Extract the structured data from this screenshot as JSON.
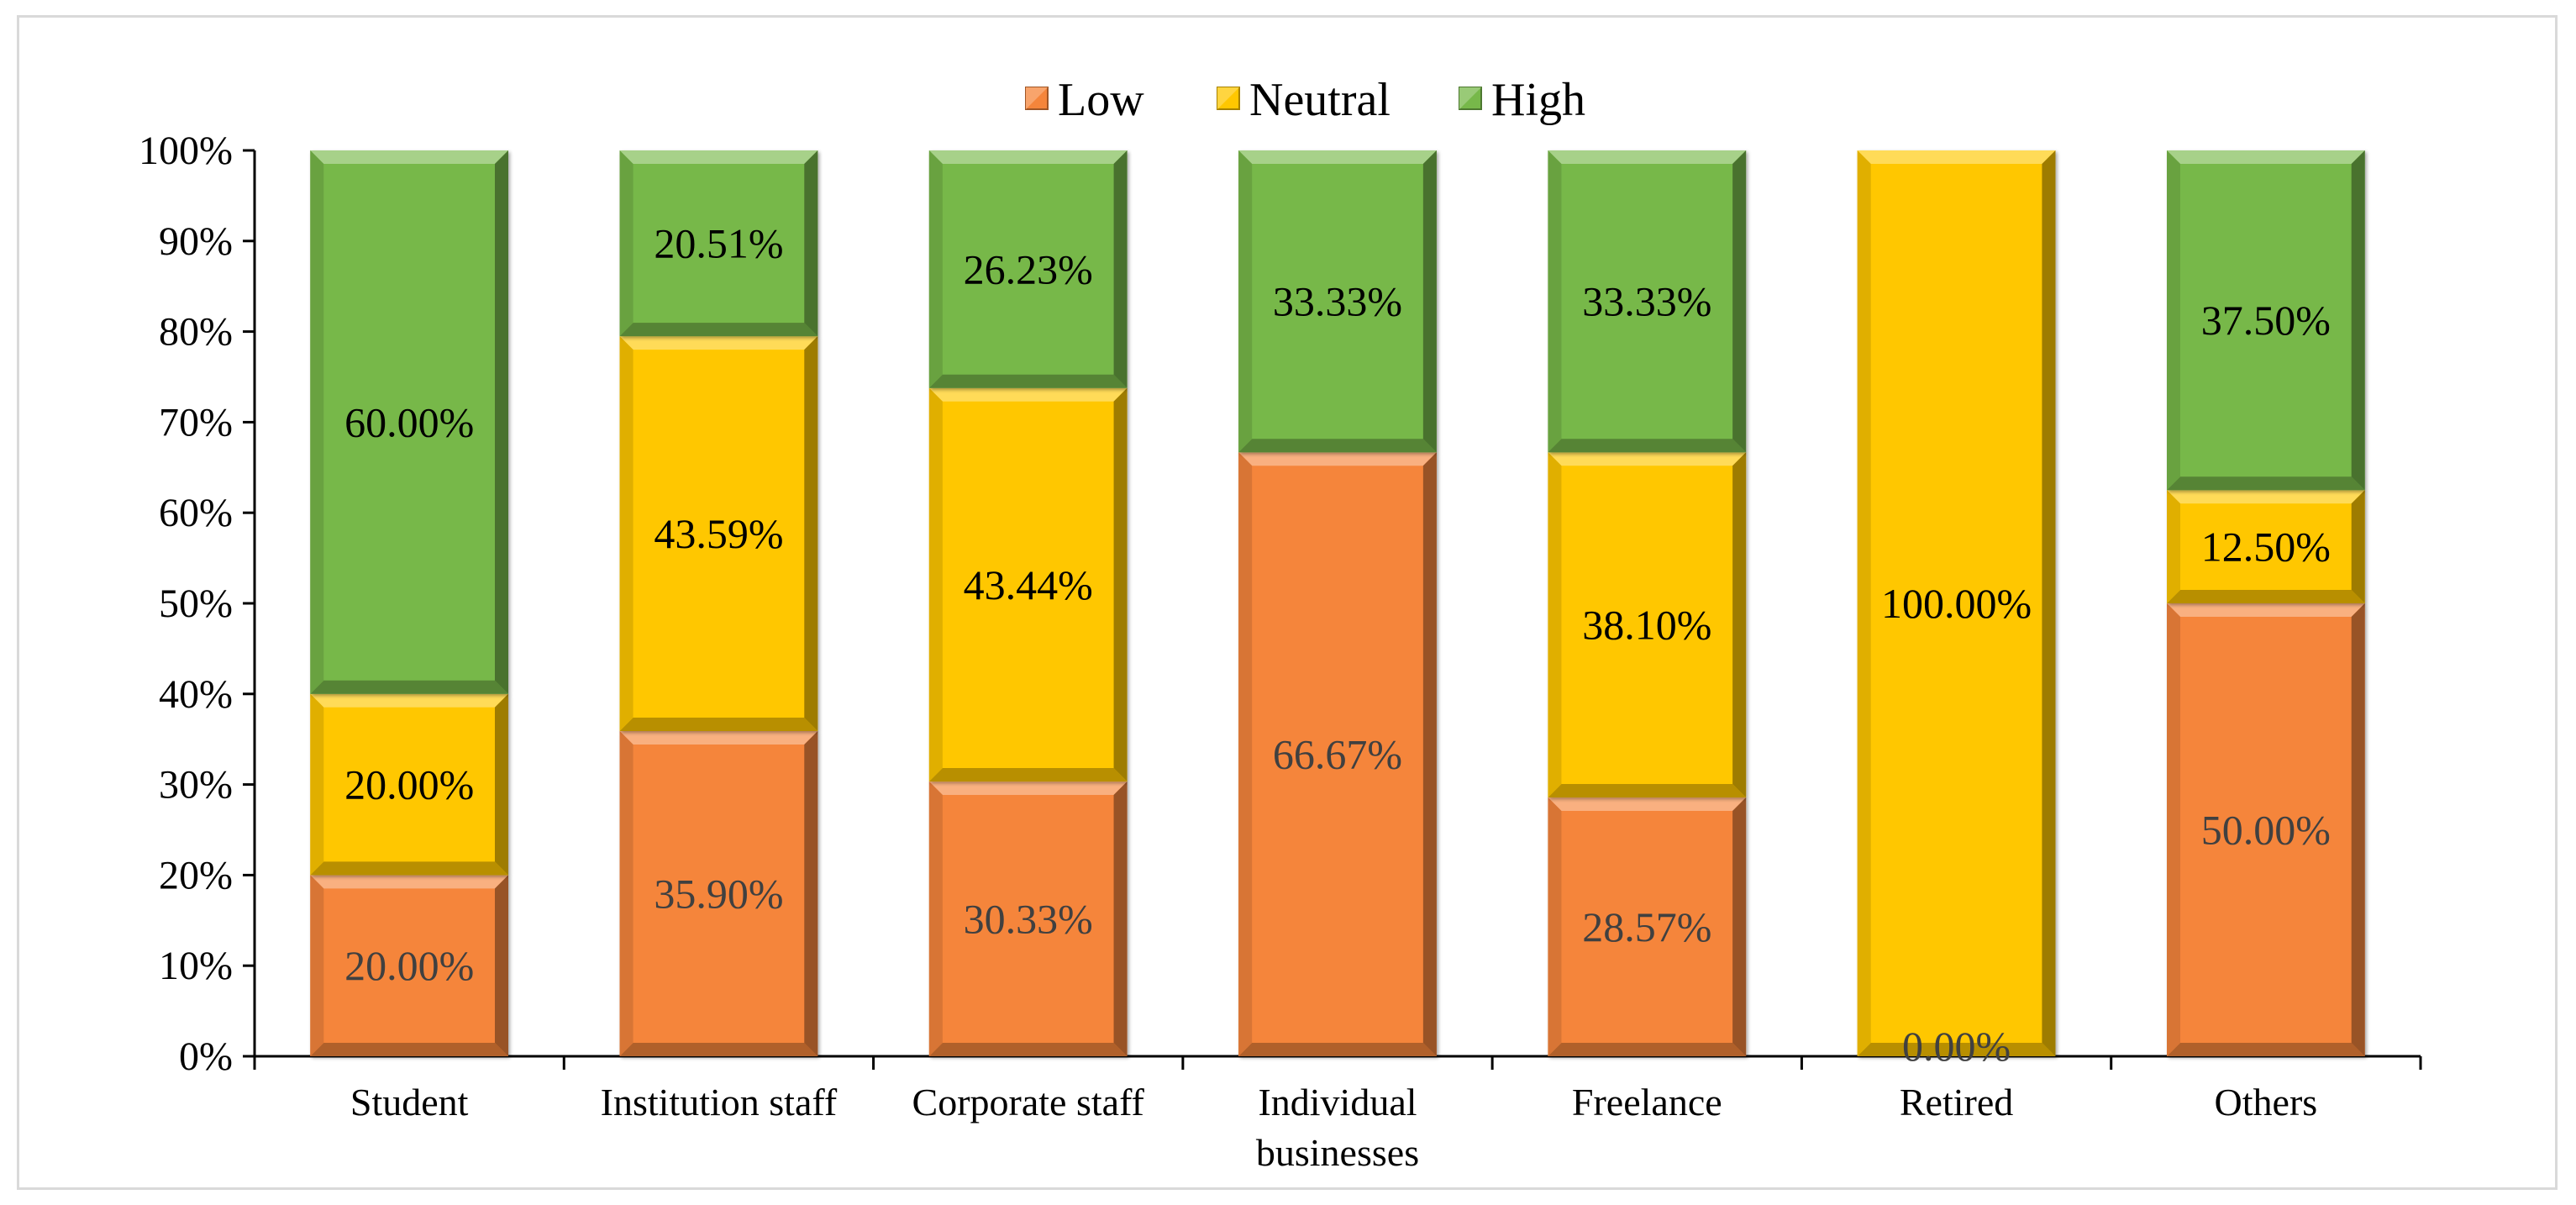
{
  "chart_data": {
    "type": "bar",
    "stacked": true,
    "percent_stacked": true,
    "title": "",
    "xlabel": "",
    "ylabel": "",
    "ylim": [
      0,
      100
    ],
    "y_ticks": [
      "0%",
      "10%",
      "20%",
      "30%",
      "40%",
      "50%",
      "60%",
      "70%",
      "80%",
      "90%",
      "100%"
    ],
    "categories": [
      [
        "Student"
      ],
      [
        "Institution staff"
      ],
      [
        "Corporate staff"
      ],
      [
        "Individual",
        "businesses"
      ],
      [
        "Freelance"
      ],
      [
        "Retired"
      ],
      [
        "Others"
      ]
    ],
    "series": [
      {
        "name": "Low",
        "color": "#f5853b",
        "values": [
          20.0,
          35.9,
          30.33,
          66.67,
          28.57,
          0.0,
          50.0
        ],
        "labels": [
          "20.00%",
          "35.90%",
          "30.33%",
          "66.67%",
          "28.57%",
          "0.00%",
          "50.00%"
        ]
      },
      {
        "name": "Neutral",
        "color": "#ffc700",
        "values": [
          20.0,
          43.59,
          43.44,
          0.0,
          38.1,
          100.0,
          12.5
        ],
        "labels": [
          "20.00%",
          "43.59%",
          "43.44%",
          "",
          "38.10%",
          "100.00%",
          "12.50%"
        ]
      },
      {
        "name": "High",
        "color": "#77b84a",
        "values": [
          60.0,
          20.51,
          26.23,
          33.33,
          33.33,
          0.0,
          37.5
        ],
        "labels": [
          "60.00%",
          "20.51%",
          "26.23%",
          "33.33%",
          "33.33%",
          "",
          "37.50%"
        ]
      }
    ],
    "legend": {
      "position": "top",
      "entries": [
        "Low",
        "Neutral",
        "High"
      ]
    },
    "grid": false
  }
}
